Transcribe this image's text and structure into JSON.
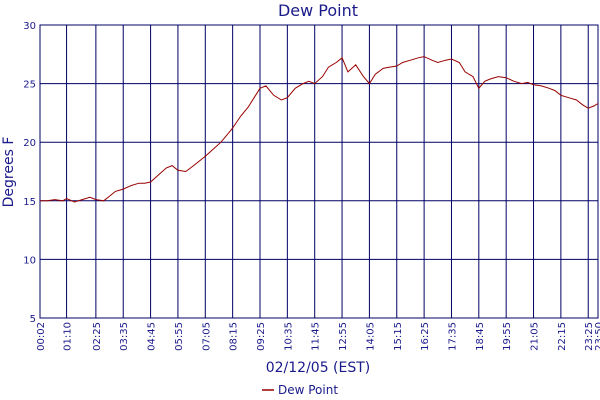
{
  "chart_data": {
    "type": "line",
    "title": "Dew Point",
    "xlabel": "02/12/05 (EST)",
    "ylabel": "Degrees F",
    "ylim": [
      5,
      30
    ],
    "yticks": [
      5,
      10,
      15,
      20,
      25,
      30
    ],
    "x_categories": [
      "00:02",
      "01:10",
      "02:25",
      "03:35",
      "04:45",
      "05:55",
      "07:05",
      "08:15",
      "09:25",
      "10:35",
      "11:45",
      "12:55",
      "14:05",
      "15:15",
      "16:25",
      "17:35",
      "18:45",
      "19:55",
      "21:05",
      "22:15",
      "23:25",
      "23:50"
    ],
    "grid": true,
    "legend_position": "bottom-center",
    "colors": {
      "line": "#990000",
      "text": "#1a1a8a",
      "grid": "#000066",
      "background": "#ffffff"
    },
    "series": [
      {
        "name": "Dew Point",
        "x": [
          "00:02",
          "00:20",
          "00:40",
          "01:00",
          "01:10",
          "01:30",
          "01:50",
          "02:10",
          "02:25",
          "02:45",
          "03:00",
          "03:15",
          "03:35",
          "03:55",
          "04:15",
          "04:30",
          "04:45",
          "05:05",
          "05:25",
          "05:40",
          "05:55",
          "06:15",
          "06:35",
          "06:50",
          "07:05",
          "07:25",
          "07:45",
          "08:00",
          "08:15",
          "08:35",
          "08:55",
          "09:10",
          "09:25",
          "09:40",
          "10:00",
          "10:20",
          "10:35",
          "10:55",
          "11:15",
          "11:30",
          "11:45",
          "12:05",
          "12:20",
          "12:40",
          "12:55",
          "13:10",
          "13:30",
          "13:50",
          "14:05",
          "14:20",
          "14:40",
          "14:55",
          "15:15",
          "15:30",
          "15:50",
          "16:10",
          "16:25",
          "16:45",
          "17:00",
          "17:20",
          "17:35",
          "17:55",
          "18:10",
          "18:30",
          "18:45",
          "19:00",
          "19:15",
          "19:35",
          "19:55",
          "20:15",
          "20:35",
          "20:50",
          "21:05",
          "21:25",
          "21:45",
          "22:00",
          "22:15",
          "22:35",
          "22:55",
          "23:10",
          "23:25",
          "23:40",
          "23:50"
        ],
        "values": [
          15.0,
          15.0,
          15.1,
          15.0,
          15.2,
          14.9,
          15.1,
          15.3,
          15.1,
          15.0,
          15.4,
          15.8,
          16.0,
          16.3,
          16.5,
          16.5,
          16.6,
          17.2,
          17.8,
          18.0,
          17.6,
          17.5,
          18.0,
          18.4,
          18.8,
          19.4,
          20.0,
          20.6,
          21.2,
          22.2,
          23.0,
          23.8,
          24.6,
          24.8,
          24.0,
          23.6,
          23.8,
          24.6,
          25.0,
          25.2,
          25.0,
          25.6,
          26.4,
          26.8,
          27.2,
          26.0,
          26.6,
          25.6,
          25.0,
          25.8,
          26.3,
          26.4,
          26.5,
          26.8,
          27.0,
          27.2,
          27.3,
          27.0,
          26.8,
          27.0,
          27.1,
          26.8,
          26.0,
          25.6,
          24.6,
          25.2,
          25.4,
          25.6,
          25.5,
          25.2,
          25.0,
          25.1,
          24.9,
          24.8,
          24.6,
          24.4,
          24.0,
          23.8,
          23.6,
          23.2,
          22.9,
          23.1,
          23.3
        ]
      }
    ]
  }
}
